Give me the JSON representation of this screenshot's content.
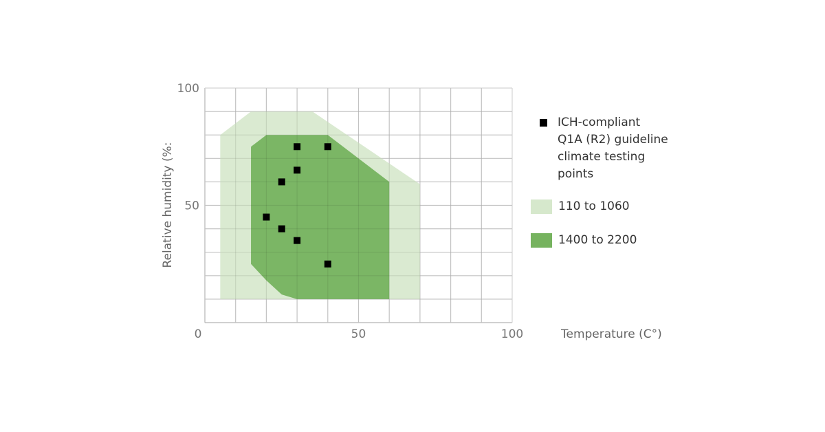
{
  "chart_data": {
    "type": "area",
    "xlabel": "Temperature (C°)",
    "ylabel": "Relative humidity (%:",
    "xlim": [
      0,
      100
    ],
    "ylim": [
      0,
      100
    ],
    "x_ticks": [
      "0",
      "50",
      "100"
    ],
    "y_ticks": [
      "100",
      "50"
    ],
    "grid": true,
    "legend_position": "right",
    "regions": [
      {
        "name": "110 to 1060",
        "color": "#d6e8cc",
        "polygon": [
          [
            5,
            80
          ],
          [
            15,
            90
          ],
          [
            35,
            90
          ],
          [
            70,
            59
          ],
          [
            70,
            10
          ],
          [
            5,
            10
          ],
          [
            5,
            40
          ]
        ]
      },
      {
        "name": "1400 to 2200",
        "color": "#76b35f",
        "polygon": [
          [
            15,
            75
          ],
          [
            20,
            80
          ],
          [
            40,
            80
          ],
          [
            60,
            60
          ],
          [
            60,
            10
          ],
          [
            30,
            10
          ],
          [
            25,
            12
          ],
          [
            20,
            18
          ],
          [
            15,
            25
          ]
        ]
      }
    ],
    "points_series": {
      "name": "ICH-compliant Q1A (R2) guideline climate testing points",
      "color": "#000000",
      "points": [
        [
          30,
          75
        ],
        [
          40,
          75
        ],
        [
          30,
          65
        ],
        [
          25,
          60
        ],
        [
          20,
          45
        ],
        [
          25,
          40
        ],
        [
          30,
          35
        ],
        [
          40,
          25
        ]
      ]
    }
  },
  "legend": {
    "points_label_lines": [
      "ICH-compliant",
      "Q1A (R2) guideline",
      "climate testing",
      "points"
    ],
    "band1_label": "110 to 1060",
    "band2_label": "1400 to 2200"
  }
}
